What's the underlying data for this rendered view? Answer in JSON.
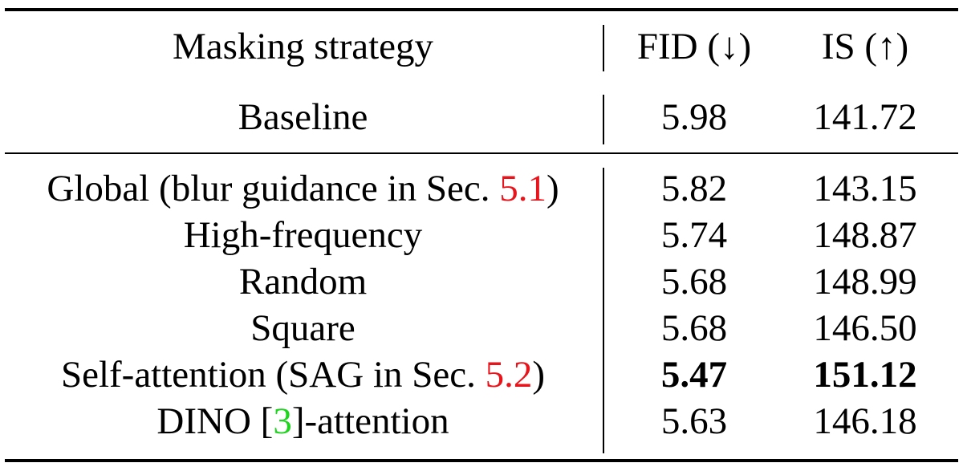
{
  "table": {
    "header": {
      "strategy": "Masking strategy",
      "fid": "FID (↓)",
      "is": "IS (↑)"
    },
    "baseline": {
      "strategy": "Baseline",
      "fid": "5.98",
      "is": "141.72"
    },
    "rows": [
      {
        "pre": "Global (blur guidance in Sec. ",
        "ref": "5.1",
        "post": ")",
        "fid": "5.82",
        "is": "143.15"
      },
      {
        "pre": "High-frequency",
        "fid": "5.74",
        "is": "148.87"
      },
      {
        "pre": "Random",
        "fid": "5.68",
        "is": "148.99"
      },
      {
        "pre": "Square",
        "fid": "5.68",
        "is": "146.50"
      },
      {
        "pre": "Self-attention (SAG in Sec. ",
        "ref": "5.2",
        "post": ")",
        "fid": "5.47",
        "is": "151.12",
        "best": true
      },
      {
        "pre": "DINO [",
        "ref": "3",
        "post": "]-attention",
        "fid": "5.63",
        "is": "146.18"
      }
    ]
  },
  "colors": {
    "section_ref": "#e8141c",
    "citation_ref": "#1fd41f",
    "text": "#000000"
  }
}
